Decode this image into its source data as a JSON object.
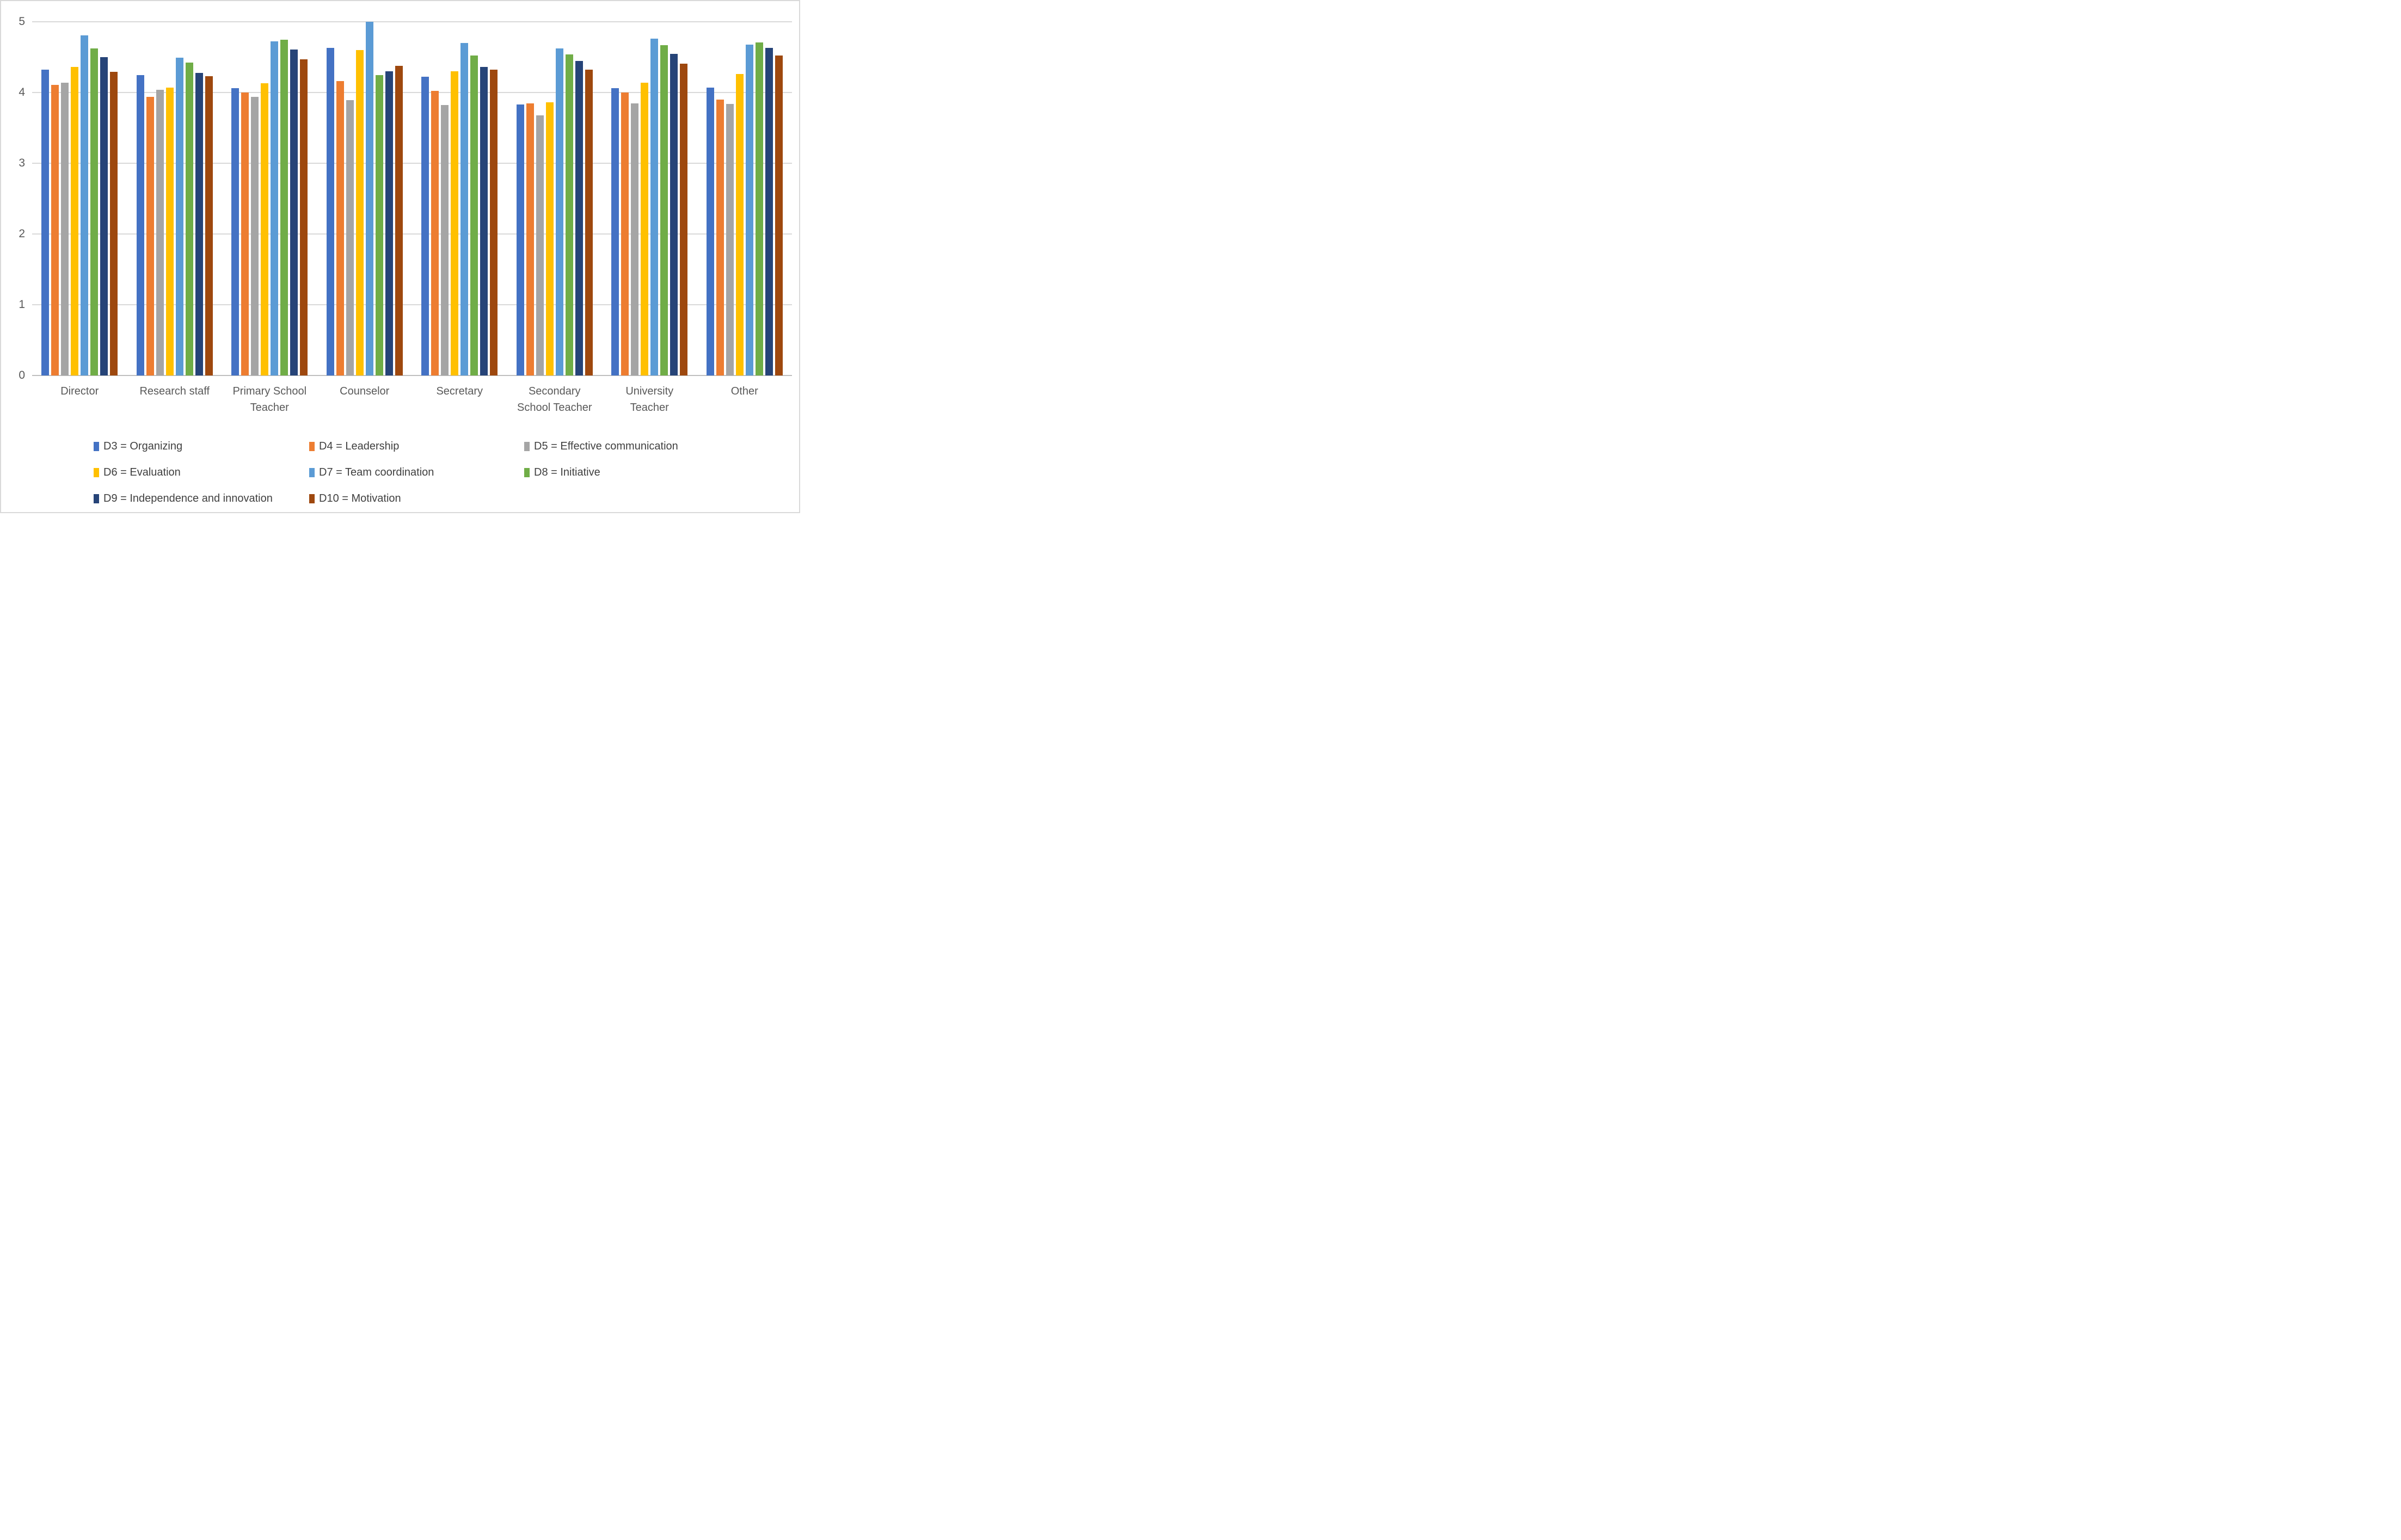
{
  "y_axis": {
    "tick_labels": [
      "5",
      "4",
      "3",
      "2",
      "1",
      "0"
    ]
  },
  "chart_data": {
    "type": "bar",
    "title": "",
    "xlabel": "",
    "ylabel": "",
    "ylim": [
      0,
      5
    ],
    "y_ticks": [
      0,
      1,
      2,
      3,
      4,
      5
    ],
    "grid": true,
    "legend_position": "bottom",
    "gridline_color": "#d9d9d9",
    "axis_text_color": "#595959",
    "legend_text_color": "#404040",
    "categories": [
      "Director",
      "Research staff",
      "Primary School Teacher",
      "Counselor",
      "Secretary",
      "Secondary School Teacher",
      "University Teacher",
      "Other"
    ],
    "series": [
      {
        "id": "d3",
        "name": "D3 = Organizing",
        "color": "#4472C4",
        "values": [
          4.32,
          4.25,
          4.06,
          4.63,
          4.22,
          3.83,
          4.06,
          4.07
        ]
      },
      {
        "id": "d4",
        "name": "D4 = Leadership",
        "color": "#ED7D31",
        "values": [
          4.11,
          3.94,
          4.0,
          4.16,
          4.02,
          3.85,
          4.0,
          3.9
        ]
      },
      {
        "id": "d5",
        "name": "D5 = Effective communication",
        "color": "#A5A5A5",
        "values": [
          4.14,
          4.04,
          3.94,
          3.89,
          3.82,
          3.68,
          3.85,
          3.84
        ]
      },
      {
        "id": "d6",
        "name": "D6 = Evaluation",
        "color": "#FFC000",
        "values": [
          4.36,
          4.07,
          4.13,
          4.6,
          4.3,
          3.86,
          4.14,
          4.26
        ]
      },
      {
        "id": "d7",
        "name": "D7 = Team coordination",
        "color": "#5B9BD5",
        "values": [
          4.81,
          4.49,
          4.72,
          5.0,
          4.7,
          4.62,
          4.76,
          4.68
        ]
      },
      {
        "id": "d8",
        "name": "D8 = Initiative",
        "color": "#70AD47",
        "values": [
          4.62,
          4.42,
          4.75,
          4.25,
          4.52,
          4.54,
          4.67,
          4.71
        ]
      },
      {
        "id": "d9",
        "name": "D9 = Independence and innovation",
        "color": "#264478",
        "values": [
          4.5,
          4.28,
          4.61,
          4.3,
          4.36,
          4.45,
          4.55,
          4.63
        ]
      },
      {
        "id": "d10",
        "name": "D10 = Motivation",
        "color": "#9E480E",
        "values": [
          4.29,
          4.23,
          4.47,
          4.38,
          4.32,
          4.32,
          4.41,
          4.52
        ]
      }
    ]
  }
}
